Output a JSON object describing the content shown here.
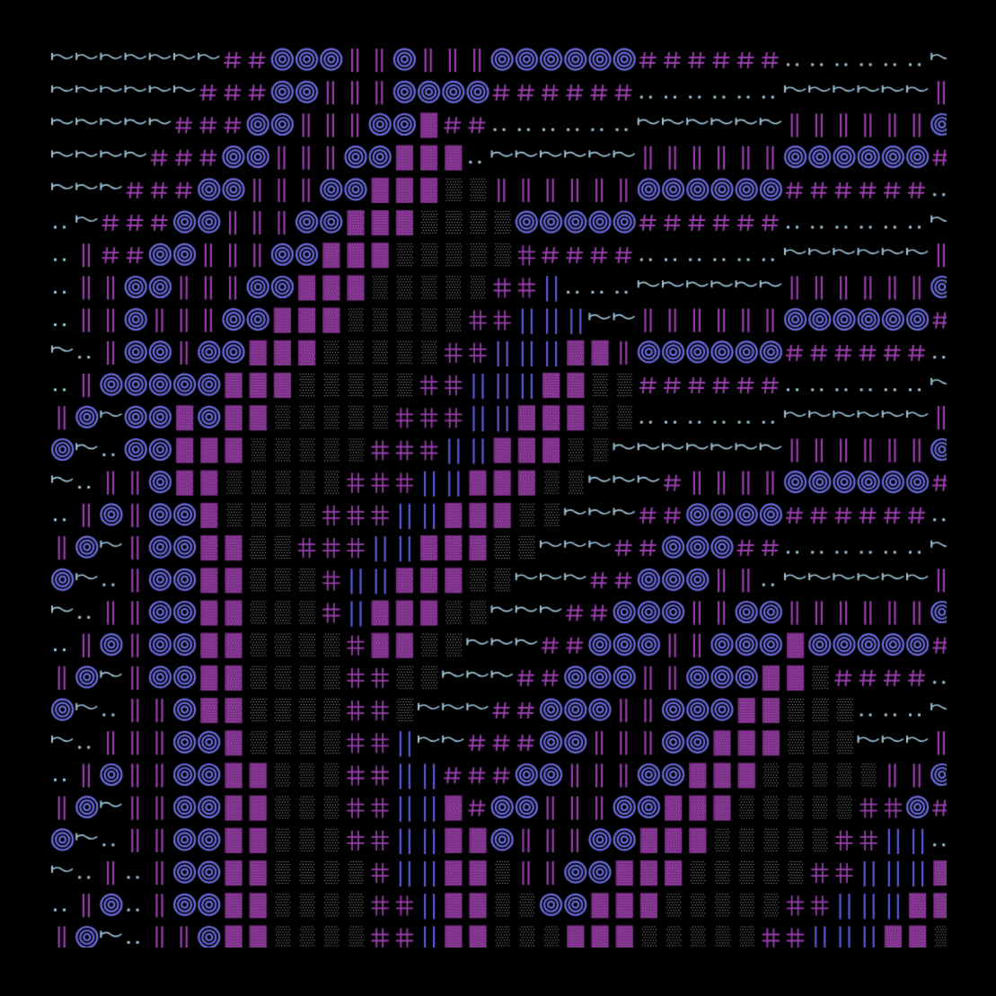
{
  "artwork": {
    "kind": "ascii-style pattern art",
    "background": "#000000",
    "palette": {
      "dot": "#9fc4d8",
      "tilde": "#9fc4d8",
      "hash": "#9a3fae",
      "spiral": "#6a6adc",
      "double_bar": "#9a3fae",
      "block": "#7a2f86",
      "block_dots": "#c06ad0",
      "stipple": "#b8b8b8",
      "cross": "#9a3fae",
      "single_bar": "#5a5ad8"
    },
    "glyph_names": [
      "dot-pair",
      "tilde-dash",
      "hash",
      "spiral-ring",
      "double-bar",
      "dotted-block",
      "stipple-block",
      "double-cross",
      "single-bar"
    ],
    "layout_note_hidden": ""
  }
}
